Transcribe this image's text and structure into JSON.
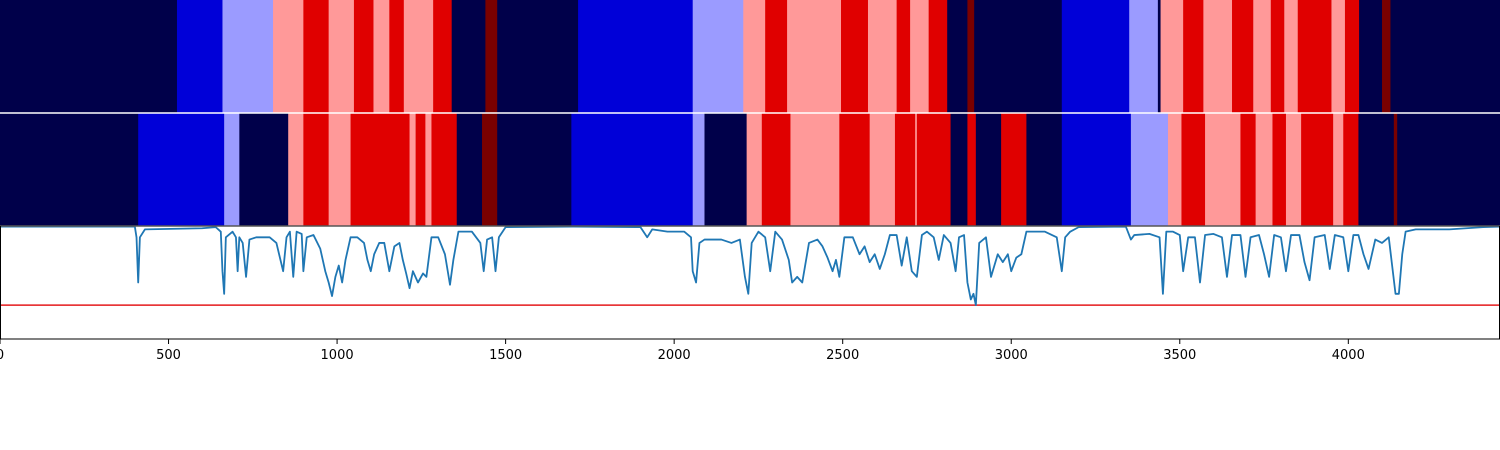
{
  "chart_data": {
    "type": "heatmap",
    "title": "",
    "xlabel": "",
    "ylabel": "",
    "xlim": [
      0,
      4450
    ],
    "xticks": [
      0,
      500,
      1000,
      1500,
      2000,
      2500,
      3000,
      3500,
      4000
    ],
    "colors": {
      "0": "#00004a",
      "1": "#0000d8",
      "2": "#9b9bff",
      "3": "#ff9999",
      "4": "#e00000",
      "5": "#7a0000",
      "line": "#1f77b4",
      "threshold": "#e41a1c",
      "divider": "#ffffff",
      "axis": "#000000"
    },
    "rows": [
      {
        "segments": [
          [
            0,
            525,
            0
          ],
          [
            525,
            660,
            1
          ],
          [
            660,
            810,
            2
          ],
          [
            810,
            900,
            3
          ],
          [
            900,
            975,
            4
          ],
          [
            975,
            1050,
            3
          ],
          [
            1050,
            1108,
            4
          ],
          [
            1108,
            1155,
            3
          ],
          [
            1155,
            1198,
            4
          ],
          [
            1198,
            1285,
            3
          ],
          [
            1285,
            1340,
            4
          ],
          [
            1340,
            1440,
            0
          ],
          [
            1440,
            1475,
            5
          ],
          [
            1475,
            1715,
            0
          ],
          [
            1715,
            2055,
            1
          ],
          [
            2055,
            2205,
            2
          ],
          [
            2205,
            2270,
            3
          ],
          [
            2270,
            2335,
            4
          ],
          [
            2335,
            2495,
            3
          ],
          [
            2495,
            2575,
            4
          ],
          [
            2575,
            2660,
            3
          ],
          [
            2660,
            2700,
            4
          ],
          [
            2700,
            2755,
            3
          ],
          [
            2755,
            2810,
            4
          ],
          [
            2810,
            2870,
            0
          ],
          [
            2870,
            2890,
            5
          ],
          [
            2890,
            3150,
            0
          ],
          [
            3150,
            3350,
            1
          ],
          [
            3350,
            3435,
            2
          ],
          [
            3435,
            3443,
            0
          ],
          [
            3443,
            3510,
            3
          ],
          [
            3510,
            3570,
            4
          ],
          [
            3570,
            3655,
            3
          ],
          [
            3655,
            3718,
            4
          ],
          [
            3718,
            3770,
            3
          ],
          [
            3770,
            3810,
            4
          ],
          [
            3810,
            3850,
            3
          ],
          [
            3850,
            3950,
            4
          ],
          [
            3950,
            3990,
            3
          ],
          [
            3990,
            4032,
            4
          ],
          [
            4032,
            4100,
            0
          ],
          [
            4100,
            4125,
            5
          ],
          [
            4125,
            4450,
            0
          ]
        ]
      },
      {
        "segments": [
          [
            0,
            410,
            0
          ],
          [
            410,
            665,
            1
          ],
          [
            665,
            710,
            2
          ],
          [
            710,
            855,
            0
          ],
          [
            855,
            900,
            3
          ],
          [
            900,
            975,
            4
          ],
          [
            975,
            1040,
            3
          ],
          [
            1040,
            1215,
            4
          ],
          [
            1215,
            1233,
            3
          ],
          [
            1233,
            1262,
            4
          ],
          [
            1262,
            1280,
            3
          ],
          [
            1280,
            1355,
            4
          ],
          [
            1355,
            1430,
            0
          ],
          [
            1430,
            1475,
            5
          ],
          [
            1475,
            1695,
            0
          ],
          [
            1695,
            2055,
            1
          ],
          [
            2055,
            2090,
            2
          ],
          [
            2090,
            2215,
            0
          ],
          [
            2215,
            2260,
            3
          ],
          [
            2260,
            2345,
            4
          ],
          [
            2345,
            2350,
            3
          ],
          [
            2350,
            2490,
            3
          ],
          [
            2490,
            2580,
            4
          ],
          [
            2580,
            2655,
            3
          ],
          [
            2655,
            2715,
            4
          ],
          [
            2715,
            2720,
            3
          ],
          [
            2720,
            2820,
            4
          ],
          [
            2820,
            2870,
            0
          ],
          [
            2870,
            2895,
            4
          ],
          [
            2895,
            2970,
            0
          ],
          [
            2970,
            3045,
            4
          ],
          [
            3045,
            3150,
            0
          ],
          [
            3150,
            3355,
            1
          ],
          [
            3355,
            3465,
            2
          ],
          [
            3465,
            3505,
            3
          ],
          [
            3505,
            3575,
            4
          ],
          [
            3575,
            3680,
            3
          ],
          [
            3680,
            3725,
            4
          ],
          [
            3725,
            3775,
            3
          ],
          [
            3775,
            3815,
            4
          ],
          [
            3815,
            3860,
            3
          ],
          [
            3860,
            3955,
            4
          ],
          [
            3955,
            3985,
            3
          ],
          [
            3985,
            4030,
            4
          ],
          [
            4030,
            4135,
            0
          ],
          [
            4135,
            4145,
            5
          ],
          [
            4145,
            4450,
            0
          ]
        ]
      }
    ],
    "series": [
      {
        "ylim": [
          0,
          1
        ],
        "points": [
          [
            0,
            0.995
          ],
          [
            400,
            0.995
          ],
          [
            405,
            0.9
          ],
          [
            410,
            0.5
          ],
          [
            415,
            0.9
          ],
          [
            430,
            0.97
          ],
          [
            600,
            0.98
          ],
          [
            640,
            0.99
          ],
          [
            655,
            0.95
          ],
          [
            660,
            0.6
          ],
          [
            665,
            0.4
          ],
          [
            670,
            0.9
          ],
          [
            690,
            0.95
          ],
          [
            700,
            0.9
          ],
          [
            705,
            0.6
          ],
          [
            710,
            0.9
          ],
          [
            720,
            0.85
          ],
          [
            730,
            0.55
          ],
          [
            740,
            0.88
          ],
          [
            760,
            0.9
          ],
          [
            800,
            0.9
          ],
          [
            820,
            0.85
          ],
          [
            840,
            0.6
          ],
          [
            850,
            0.9
          ],
          [
            860,
            0.95
          ],
          [
            870,
            0.55
          ],
          [
            880,
            0.95
          ],
          [
            895,
            0.93
          ],
          [
            900,
            0.6
          ],
          [
            910,
            0.9
          ],
          [
            930,
            0.92
          ],
          [
            950,
            0.8
          ],
          [
            965,
            0.6
          ],
          [
            975,
            0.5
          ],
          [
            985,
            0.38
          ],
          [
            995,
            0.55
          ],
          [
            1005,
            0.65
          ],
          [
            1015,
            0.5
          ],
          [
            1025,
            0.7
          ],
          [
            1040,
            0.9
          ],
          [
            1060,
            0.9
          ],
          [
            1080,
            0.85
          ],
          [
            1090,
            0.7
          ],
          [
            1100,
            0.6
          ],
          [
            1110,
            0.75
          ],
          [
            1125,
            0.85
          ],
          [
            1140,
            0.85
          ],
          [
            1155,
            0.6
          ],
          [
            1170,
            0.82
          ],
          [
            1185,
            0.85
          ],
          [
            1195,
            0.7
          ],
          [
            1205,
            0.58
          ],
          [
            1215,
            0.45
          ],
          [
            1225,
            0.6
          ],
          [
            1240,
            0.5
          ],
          [
            1255,
            0.58
          ],
          [
            1265,
            0.55
          ],
          [
            1280,
            0.9
          ],
          [
            1300,
            0.9
          ],
          [
            1320,
            0.75
          ],
          [
            1335,
            0.48
          ],
          [
            1345,
            0.7
          ],
          [
            1360,
            0.95
          ],
          [
            1400,
            0.95
          ],
          [
            1425,
            0.85
          ],
          [
            1435,
            0.6
          ],
          [
            1445,
            0.88
          ],
          [
            1460,
            0.9
          ],
          [
            1470,
            0.6
          ],
          [
            1480,
            0.9
          ],
          [
            1500,
            0.99
          ],
          [
            1700,
            0.995
          ],
          [
            1900,
            0.99
          ],
          [
            1920,
            0.9
          ],
          [
            1935,
            0.97
          ],
          [
            1980,
            0.95
          ],
          [
            2030,
            0.95
          ],
          [
            2050,
            0.9
          ],
          [
            2055,
            0.6
          ],
          [
            2065,
            0.5
          ],
          [
            2075,
            0.85
          ],
          [
            2090,
            0.88
          ],
          [
            2110,
            0.88
          ],
          [
            2140,
            0.88
          ],
          [
            2170,
            0.85
          ],
          [
            2195,
            0.88
          ],
          [
            2210,
            0.55
          ],
          [
            2220,
            0.4
          ],
          [
            2230,
            0.85
          ],
          [
            2250,
            0.95
          ],
          [
            2270,
            0.9
          ],
          [
            2285,
            0.6
          ],
          [
            2300,
            0.95
          ],
          [
            2320,
            0.88
          ],
          [
            2340,
            0.7
          ],
          [
            2350,
            0.5
          ],
          [
            2365,
            0.55
          ],
          [
            2380,
            0.5
          ],
          [
            2400,
            0.85
          ],
          [
            2425,
            0.88
          ],
          [
            2440,
            0.82
          ],
          [
            2455,
            0.72
          ],
          [
            2470,
            0.6
          ],
          [
            2480,
            0.7
          ],
          [
            2490,
            0.55
          ],
          [
            2505,
            0.9
          ],
          [
            2530,
            0.9
          ],
          [
            2550,
            0.75
          ],
          [
            2565,
            0.82
          ],
          [
            2580,
            0.68
          ],
          [
            2595,
            0.75
          ],
          [
            2610,
            0.62
          ],
          [
            2625,
            0.75
          ],
          [
            2640,
            0.92
          ],
          [
            2660,
            0.92
          ],
          [
            2675,
            0.65
          ],
          [
            2690,
            0.9
          ],
          [
            2705,
            0.6
          ],
          [
            2720,
            0.55
          ],
          [
            2735,
            0.92
          ],
          [
            2750,
            0.95
          ],
          [
            2770,
            0.9
          ],
          [
            2785,
            0.7
          ],
          [
            2800,
            0.92
          ],
          [
            2820,
            0.85
          ],
          [
            2835,
            0.6
          ],
          [
            2845,
            0.9
          ],
          [
            2860,
            0.92
          ],
          [
            2870,
            0.5
          ],
          [
            2880,
            0.35
          ],
          [
            2888,
            0.4
          ],
          [
            2895,
            0.3
          ],
          [
            2905,
            0.85
          ],
          [
            2925,
            0.9
          ],
          [
            2940,
            0.55
          ],
          [
            2960,
            0.75
          ],
          [
            2975,
            0.68
          ],
          [
            2990,
            0.75
          ],
          [
            3000,
            0.6
          ],
          [
            3015,
            0.72
          ],
          [
            3030,
            0.75
          ],
          [
            3045,
            0.95
          ],
          [
            3100,
            0.95
          ],
          [
            3135,
            0.9
          ],
          [
            3150,
            0.6
          ],
          [
            3160,
            0.9
          ],
          [
            3175,
            0.95
          ],
          [
            3200,
            0.99
          ],
          [
            3340,
            0.995
          ],
          [
            3355,
            0.88
          ],
          [
            3365,
            0.92
          ],
          [
            3410,
            0.93
          ],
          [
            3440,
            0.9
          ],
          [
            3450,
            0.4
          ],
          [
            3460,
            0.95
          ],
          [
            3480,
            0.95
          ],
          [
            3500,
            0.92
          ],
          [
            3510,
            0.6
          ],
          [
            3525,
            0.9
          ],
          [
            3545,
            0.9
          ],
          [
            3560,
            0.5
          ],
          [
            3575,
            0.92
          ],
          [
            3600,
            0.93
          ],
          [
            3625,
            0.9
          ],
          [
            3640,
            0.55
          ],
          [
            3655,
            0.92
          ],
          [
            3680,
            0.92
          ],
          [
            3695,
            0.55
          ],
          [
            3710,
            0.9
          ],
          [
            3735,
            0.92
          ],
          [
            3750,
            0.75
          ],
          [
            3765,
            0.55
          ],
          [
            3780,
            0.92
          ],
          [
            3800,
            0.9
          ],
          [
            3815,
            0.6
          ],
          [
            3830,
            0.92
          ],
          [
            3855,
            0.92
          ],
          [
            3870,
            0.68
          ],
          [
            3885,
            0.52
          ],
          [
            3900,
            0.9
          ],
          [
            3930,
            0.92
          ],
          [
            3945,
            0.62
          ],
          [
            3960,
            0.92
          ],
          [
            3985,
            0.9
          ],
          [
            4000,
            0.6
          ],
          [
            4015,
            0.92
          ],
          [
            4030,
            0.92
          ],
          [
            4045,
            0.75
          ],
          [
            4060,
            0.62
          ],
          [
            4080,
            0.88
          ],
          [
            4100,
            0.85
          ],
          [
            4120,
            0.9
          ],
          [
            4130,
            0.65
          ],
          [
            4140,
            0.4
          ],
          [
            4150,
            0.4
          ],
          [
            4160,
            0.75
          ],
          [
            4170,
            0.95
          ],
          [
            4200,
            0.97
          ],
          [
            4300,
            0.97
          ],
          [
            4400,
            0.99
          ],
          [
            4450,
            0.995
          ]
        ]
      }
    ],
    "threshold": 0.3
  }
}
